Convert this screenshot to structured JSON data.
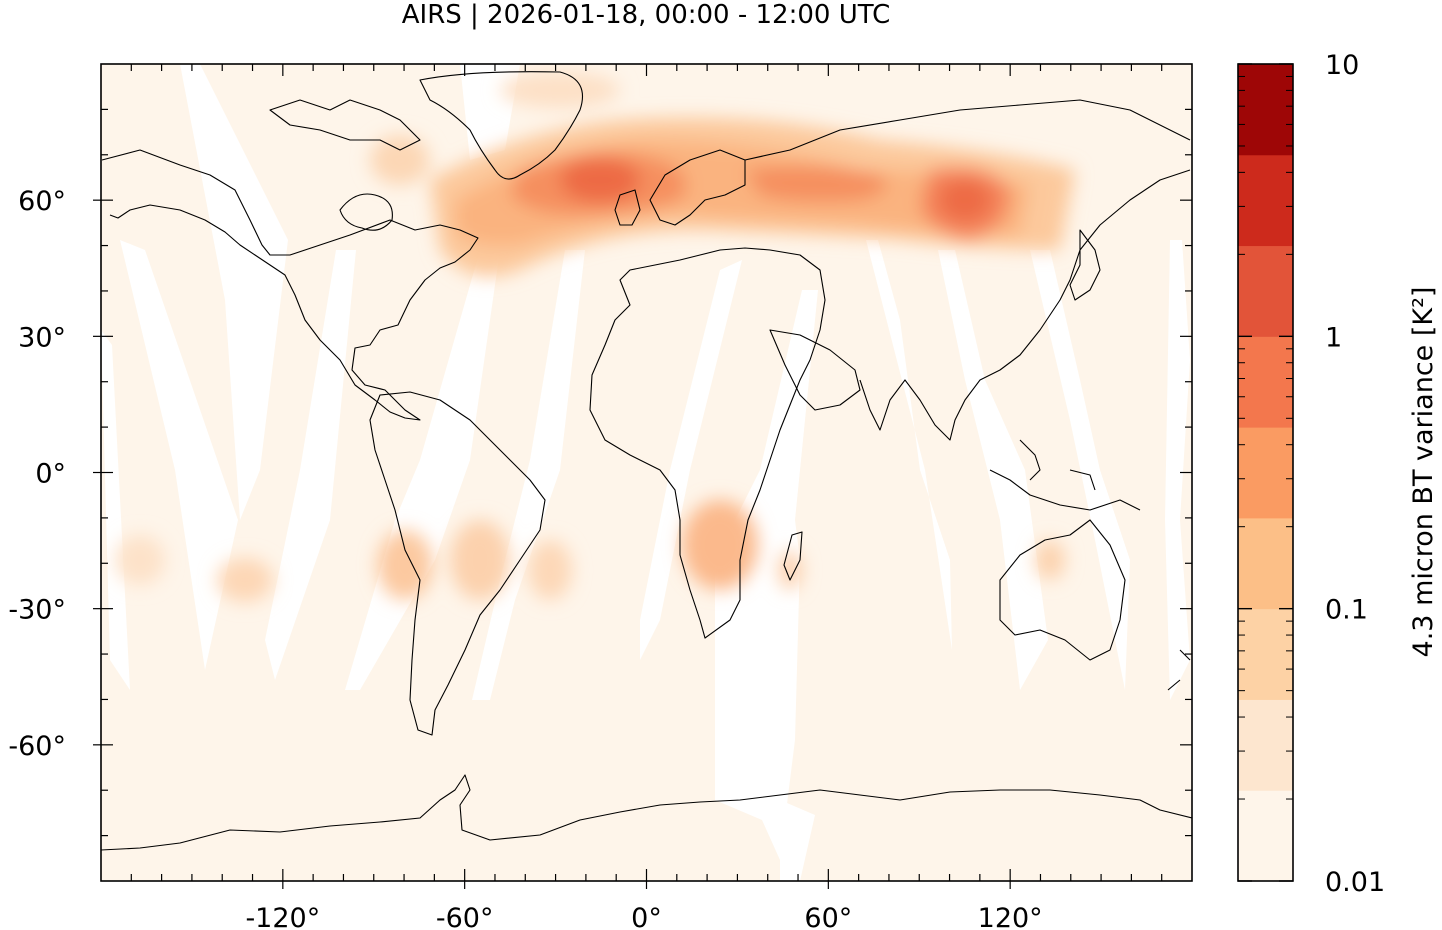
{
  "title": "AIRS | 2026-01-18, 00:00 - 12:00 UTC",
  "map": {
    "projection": "equirectangular",
    "lon_range": [
      -180,
      180
    ],
    "lat_range": [
      -90,
      90
    ],
    "x_ticks": [
      -120,
      -60,
      0,
      60,
      120
    ],
    "x_tick_labels": [
      "-120°",
      "-60°",
      "0°",
      "60°",
      "120°"
    ],
    "y_ticks": [
      60,
      30,
      0,
      -30,
      -60
    ],
    "y_tick_labels": [
      "60°",
      "30°",
      "0°",
      "-30°",
      "-60°"
    ],
    "background_color": "#fef5ea",
    "coastline_color": "#000000"
  },
  "colorbar": {
    "label": "4.3 micron BT variance [K²]",
    "scale": "log",
    "range": [
      0.01,
      10
    ],
    "tick_values": [
      10,
      1,
      0.1,
      0.01
    ],
    "tick_labels": [
      "10",
      "1",
      "0.1",
      "0.01"
    ],
    "colors": [
      "#fef5ea",
      "#fde6cf",
      "#fdd2a5",
      "#fcbf87",
      "#fa9b62",
      "#f3774d",
      "#e25439",
      "#cd2a1c",
      "#9e0606"
    ]
  }
}
